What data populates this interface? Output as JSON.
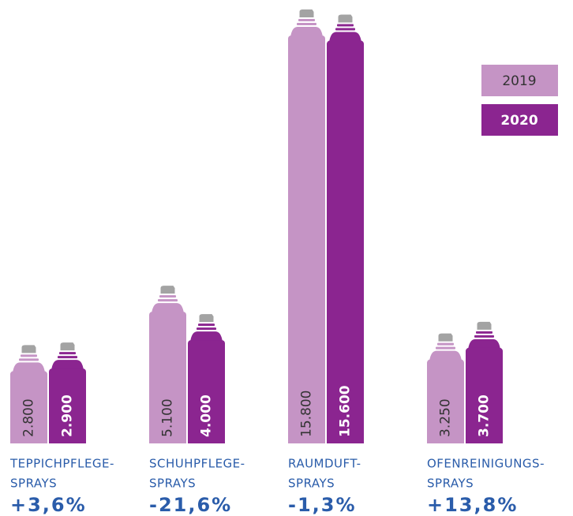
{
  "chart_data": {
    "type": "bar",
    "categories": [
      [
        "TEPPICHPFLEGE-",
        "SPRAYS"
      ],
      [
        "SCHUHPFLEGE-",
        "SPRAYS"
      ],
      [
        "RAUMDUFT-",
        "SPRAYS"
      ],
      [
        "OFENREINIGUNGS-",
        "SPRAYS"
      ]
    ],
    "changes": [
      "+3,6%",
      "-21,6%",
      "-1,3%",
      "+13,8%"
    ],
    "series": [
      {
        "name": "2019",
        "color": "#c594c5",
        "values": [
          2800,
          5100,
          15800,
          3250
        ],
        "value_labels": [
          "2.800",
          "5.100",
          "15.800",
          "3.250"
        ]
      },
      {
        "name": "2020",
        "color": "#8b2590",
        "values": [
          2900,
          4000,
          15600,
          3700
        ],
        "value_labels": [
          "2.900",
          "4.000",
          "15.600",
          "3.700"
        ]
      }
    ],
    "legend": "top-right"
  }
}
